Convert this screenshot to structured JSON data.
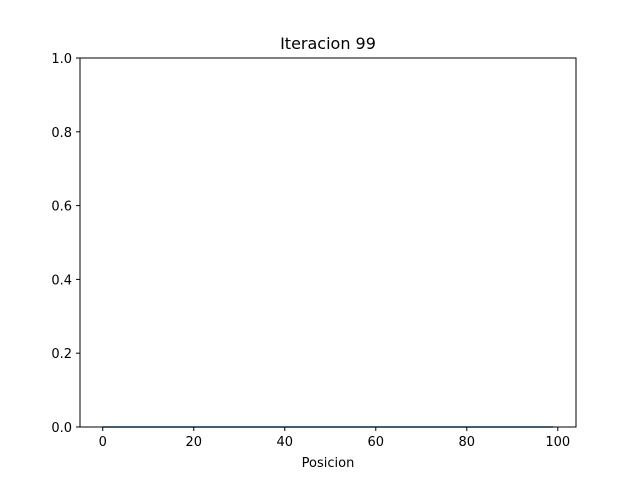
{
  "chart_data": {
    "type": "line",
    "title": "Iteracion 99",
    "xlabel": "Posicion",
    "ylabel": "",
    "xlim": [
      -5,
      104
    ],
    "ylim": [
      0,
      1.0
    ],
    "xticks": [
      0,
      20,
      40,
      60,
      80,
      100
    ],
    "xtick_labels": [
      "0",
      "20",
      "40",
      "60",
      "80",
      "100"
    ],
    "yticks": [
      0.0,
      0.2,
      0.4,
      0.6,
      0.8,
      1.0
    ],
    "ytick_labels": [
      "0.0",
      "0.2",
      "0.4",
      "0.6",
      "0.8",
      "1.0"
    ],
    "grid": false,
    "series": [
      {
        "color": "#1f77b4",
        "x": [
          0,
          99
        ],
        "y": [
          0,
          0
        ]
      }
    ]
  }
}
